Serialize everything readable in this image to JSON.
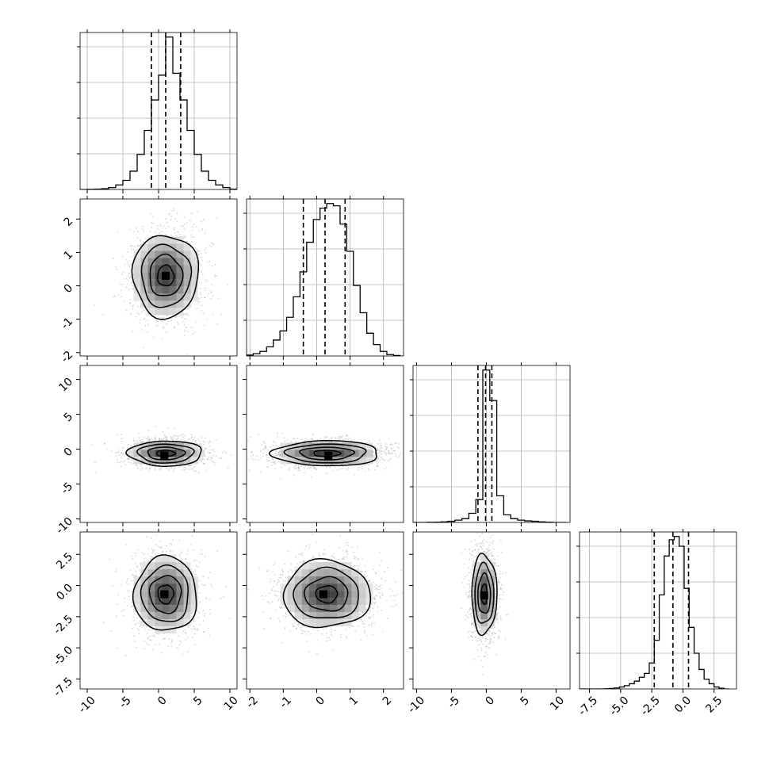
{
  "colors": {
    "background": "#ffffff",
    "line": "#000000",
    "grid": "#b0b0b0",
    "scatter": "#8c8c8c"
  },
  "chart_data": {
    "type": "corner",
    "parameters": 4,
    "grid": true,
    "axis_ranges": [
      [
        -11,
        11
      ],
      [
        -2.1,
        2.6
      ],
      [
        -10.5,
        12
      ],
      [
        -8.3,
        4.3
      ]
    ],
    "tick_labels": {
      "x_bottom": [
        [
          "-10",
          "-5",
          "0",
          "5",
          "10"
        ],
        [
          "-2",
          "-1",
          "0",
          "1",
          "2"
        ],
        [
          "-10",
          "-5",
          "0",
          "5",
          "10"
        ],
        [
          "-7.5",
          "-5.0",
          "-2.5",
          "0.0",
          "2.5"
        ]
      ],
      "y_left": [
        [],
        [
          "2",
          "1",
          "0",
          "-1",
          "-2"
        ],
        [
          "10",
          "5",
          "0",
          "-5",
          "-10"
        ],
        [
          "2.5",
          "0.0",
          "-2.5",
          "-5.0",
          "-7.5"
        ]
      ]
    },
    "marginals": [
      {
        "param": 0,
        "bin_edges": [
          -11,
          -10,
          -9,
          -8,
          -7,
          -6,
          -5,
          -4,
          -3,
          -2,
          -1,
          0,
          1,
          2,
          3,
          4,
          5,
          6,
          7,
          8,
          9,
          10,
          11
        ],
        "counts": [
          0,
          0.005,
          0.01,
          0.02,
          0.05,
          0.12,
          0.24,
          0.48,
          0.92,
          1.55,
          2.35,
          3.0,
          4.0,
          3.05,
          2.35,
          1.55,
          0.92,
          0.48,
          0.24,
          0.12,
          0.05,
          0.01
        ],
        "quantiles": [
          -1.0,
          1.0,
          3.1
        ]
      },
      {
        "param": 1,
        "bin_edges": [
          -2.1,
          -1.9,
          -1.7,
          -1.5,
          -1.3,
          -1.1,
          -0.9,
          -0.7,
          -0.5,
          -0.3,
          -0.1,
          0.1,
          0.3,
          0.5,
          0.7,
          0.9,
          1.1,
          1.3,
          1.5,
          1.7,
          1.9,
          2.1,
          2.3,
          2.5
        ],
        "counts": [
          0.02,
          0.05,
          0.1,
          0.2,
          0.35,
          0.55,
          0.85,
          1.3,
          1.85,
          2.5,
          3.0,
          3.25,
          3.35,
          3.3,
          2.9,
          2.3,
          1.55,
          0.95,
          0.5,
          0.25,
          0.1,
          0.03,
          0.01
        ],
        "quantiles": [
          -0.4,
          0.25,
          0.85
        ]
      },
      {
        "param": 2,
        "bin_edges": [
          -10.5,
          -9.5,
          -8.5,
          -7.5,
          -6.5,
          -5.5,
          -4.5,
          -3.5,
          -2.5,
          -1.5,
          -0.5,
          0.5,
          1.5,
          2.5,
          3.5,
          4.5,
          5.5,
          6.5,
          7.5,
          8.5,
          9.5,
          10.5,
          11.5
        ],
        "counts": [
          0,
          0,
          0.002,
          0.004,
          0.008,
          0.015,
          0.03,
          0.05,
          0.12,
          0.3,
          2.0,
          1.6,
          0.35,
          0.1,
          0.05,
          0.03,
          0.02,
          0.015,
          0.008,
          0.003,
          0,
          0
        ],
        "quantiles": [
          -1.2,
          -0.1,
          0.8
        ]
      },
      {
        "param": 3,
        "bin_edges": [
          -8.3,
          -7.9,
          -7.5,
          -7.1,
          -6.7,
          -6.3,
          -5.9,
          -5.5,
          -5.1,
          -4.7,
          -4.3,
          -3.9,
          -3.5,
          -3.1,
          -2.7,
          -2.3,
          -1.9,
          -1.5,
          -1.1,
          -0.7,
          -0.3,
          0.1,
          0.5,
          0.9,
          1.3,
          1.7,
          2.1,
          2.5,
          2.9,
          3.3,
          3.7
        ],
        "counts": [
          0,
          0,
          0,
          0,
          0,
          0.003,
          0.008,
          0.015,
          0.03,
          0.05,
          0.08,
          0.12,
          0.18,
          0.24,
          0.4,
          0.75,
          1.45,
          2.05,
          2.3,
          2.35,
          2.2,
          1.55,
          0.95,
          0.55,
          0.3,
          0.15,
          0.08,
          0.03,
          0.01,
          0
        ],
        "quantiles": [
          -2.3,
          -0.8,
          0.45
        ]
      }
    ],
    "joint": [
      {
        "x": 0,
        "y": 1,
        "center": [
          1.0,
          0.3
        ],
        "sigma": [
          2.3,
          0.62
        ],
        "rho": 0.0,
        "peak": [
          1.0,
          0.3
        ]
      },
      {
        "x": 0,
        "y": 2,
        "center": [
          1.0,
          -0.6
        ],
        "sigma": [
          2.6,
          0.9
        ],
        "rho": 0.0,
        "peak": [
          0.8,
          -0.9
        ]
      },
      {
        "x": 1,
        "y": 2,
        "center": [
          0.3,
          -0.6
        ],
        "sigma": [
          0.8,
          0.9
        ],
        "rho": 0.0,
        "peak": [
          0.35,
          -0.9
        ]
      },
      {
        "x": 0,
        "y": 3,
        "center": [
          1.0,
          -0.7
        ],
        "sigma": [
          2.2,
          1.5
        ],
        "rho": 0.0,
        "peak": [
          0.8,
          -0.7
        ]
      },
      {
        "x": 1,
        "y": 3,
        "center": [
          0.3,
          -0.7
        ],
        "sigma": [
          0.65,
          1.35
        ],
        "rho": 0.0,
        "peak": [
          0.2,
          -0.7
        ]
      },
      {
        "x": 2,
        "y": 3,
        "center": [
          -0.3,
          -0.7
        ],
        "sigma": [
          0.9,
          1.6
        ],
        "rho": 0.0,
        "peak": [
          -0.3,
          -0.8
        ]
      }
    ],
    "contour_levels_sigma": [
      0.5,
      1.0,
      1.5,
      2.0
    ]
  }
}
